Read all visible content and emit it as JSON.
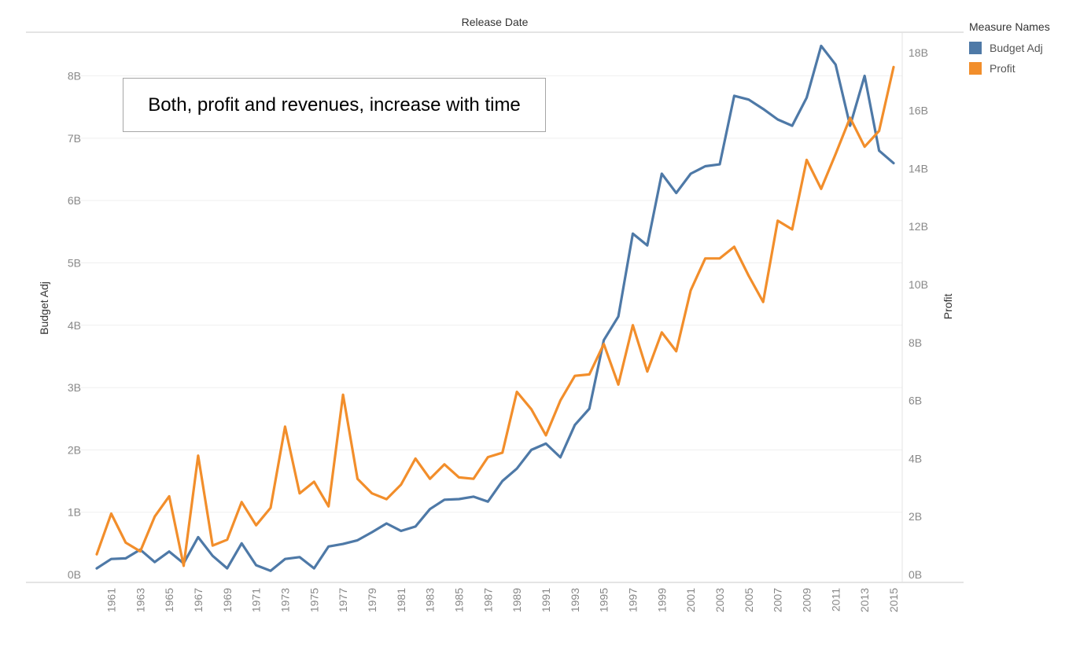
{
  "chart_data": {
    "type": "line",
    "title": "Release Date",
    "annotation": "Both, profit and revenues, increase with time",
    "x": [
      1960,
      1961,
      1962,
      1963,
      1964,
      1965,
      1966,
      1967,
      1968,
      1969,
      1970,
      1971,
      1972,
      1973,
      1974,
      1975,
      1976,
      1977,
      1978,
      1979,
      1980,
      1981,
      1982,
      1983,
      1984,
      1985,
      1986,
      1987,
      1988,
      1989,
      1990,
      1991,
      1992,
      1993,
      1994,
      1995,
      1996,
      1997,
      1998,
      1999,
      2000,
      2001,
      2002,
      2003,
      2004,
      2005,
      2006,
      2007,
      2008,
      2009,
      2010,
      2011,
      2012,
      2013,
      2014,
      2015
    ],
    "x_tick_labels": [
      "1961",
      "1963",
      "1965",
      "1967",
      "1969",
      "1971",
      "1973",
      "1975",
      "1977",
      "1979",
      "1981",
      "1983",
      "1985",
      "1987",
      "1989",
      "1991",
      "1993",
      "1995",
      "1997",
      "1999",
      "2001",
      "2003",
      "2005",
      "2007",
      "2009",
      "2011",
      "2013",
      "2015"
    ],
    "y_left": {
      "label": "Budget Adj",
      "range": [
        0,
        8.7
      ],
      "ticks": [
        "0B",
        "1B",
        "2B",
        "3B",
        "4B",
        "5B",
        "6B",
        "7B",
        "8B"
      ]
    },
    "y_right": {
      "label": "Profit",
      "range": [
        0,
        18.7
      ],
      "ticks": [
        "0B",
        "2B",
        "4B",
        "6B",
        "8B",
        "10B",
        "12B",
        "14B",
        "16B",
        "18B"
      ]
    },
    "series": [
      {
        "name": "Budget Adj",
        "axis": "left",
        "color": "#4e79a7",
        "values": [
          0.1,
          0.25,
          0.26,
          0.4,
          0.2,
          0.37,
          0.18,
          0.6,
          0.3,
          0.1,
          0.5,
          0.15,
          0.06,
          0.25,
          0.28,
          0.1,
          0.45,
          0.49,
          0.55,
          0.68,
          0.82,
          0.7,
          0.77,
          1.05,
          1.2,
          1.21,
          1.25,
          1.17,
          1.5,
          1.7,
          2.0,
          2.1,
          1.88,
          2.4,
          2.66,
          3.76,
          4.14,
          5.47,
          5.28,
          6.43,
          6.12,
          6.43,
          6.55,
          6.58,
          7.68,
          7.62,
          7.47,
          7.3,
          7.2,
          7.65,
          8.48,
          8.18,
          7.2,
          8.0,
          6.8,
          6.6
        ]
      },
      {
        "name": "Profit",
        "axis": "right",
        "color": "#f28e2b",
        "values": [
          0.7,
          2.1,
          1.1,
          0.8,
          2.0,
          2.7,
          0.3,
          4.1,
          1.0,
          1.2,
          2.5,
          1.7,
          2.3,
          5.1,
          2.8,
          3.2,
          2.35,
          6.2,
          3.3,
          2.8,
          2.6,
          3.1,
          4.0,
          3.3,
          3.8,
          3.35,
          3.3,
          4.05,
          4.2,
          6.3,
          5.7,
          4.8,
          6.0,
          6.85,
          6.9,
          7.95,
          6.55,
          8.6,
          7.0,
          8.35,
          7.7,
          9.8,
          10.9,
          10.9,
          11.3,
          10.3,
          9.4,
          12.2,
          11.9,
          14.3,
          13.3,
          14.5,
          15.75,
          14.75,
          15.3,
          17.5
        ]
      }
    ],
    "legend": {
      "title": "Measure Names",
      "position": "top-right"
    },
    "grid": true
  }
}
